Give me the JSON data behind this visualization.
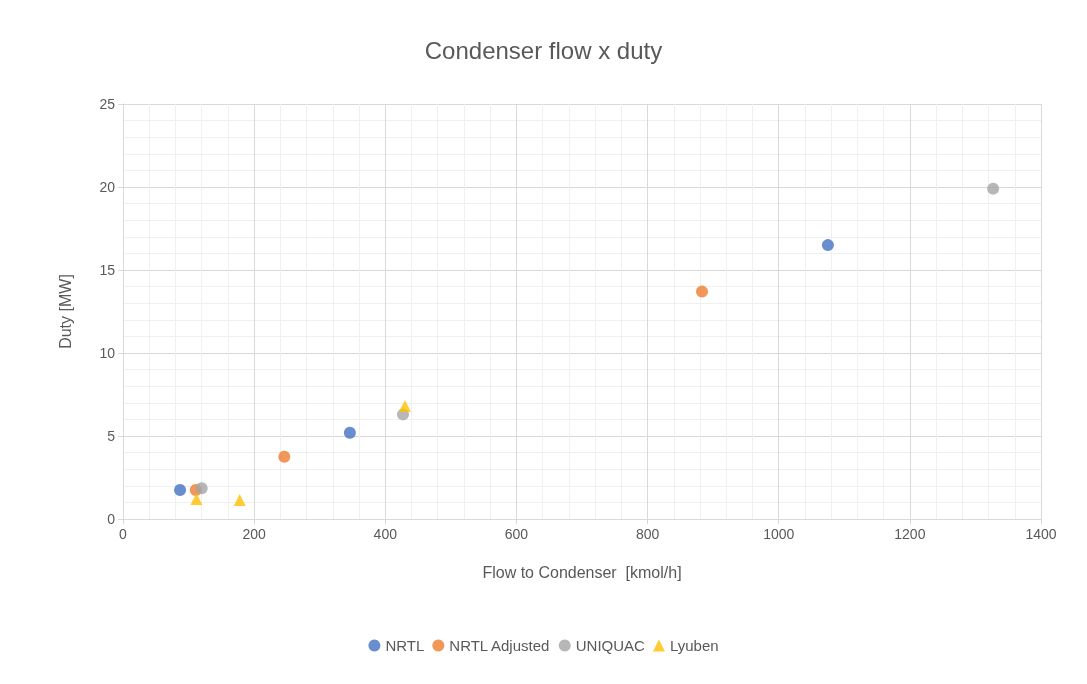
{
  "chart_data": {
    "type": "scatter",
    "title": "Condenser flow x duty",
    "xlabel": "Flow to Condenser  [kmol/h]",
    "ylabel": "Duty [MW]",
    "xlim": [
      0,
      1400
    ],
    "xticks": [
      0,
      200,
      400,
      600,
      800,
      1000,
      1200,
      1400
    ],
    "ylim": [
      0,
      25
    ],
    "yticks": [
      0,
      5,
      10,
      15,
      20,
      25
    ],
    "grid": true,
    "legend": "bottom",
    "series": [
      {
        "name": "NRTL",
        "color": "#4472c4",
        "marker": "circle",
        "x": [
          87,
          346,
          1075
        ],
        "values": [
          1.75,
          5.2,
          16.5
        ]
      },
      {
        "name": "NRTL Adjusted",
        "color": "#ed7d31",
        "marker": "circle",
        "x": [
          111,
          246,
          883
        ],
        "values": [
          1.75,
          3.75,
          13.7
        ]
      },
      {
        "name": "UNIQUAC",
        "color": "#a5a5a5",
        "marker": "circle",
        "x": [
          120,
          427,
          1327
        ],
        "values": [
          1.85,
          6.3,
          19.9
        ]
      },
      {
        "name": "Lyuben",
        "color": "#ffc000",
        "marker": "triangle",
        "x": [
          112,
          178,
          430
        ],
        "values": [
          1.2,
          1.15,
          6.8
        ]
      }
    ]
  }
}
